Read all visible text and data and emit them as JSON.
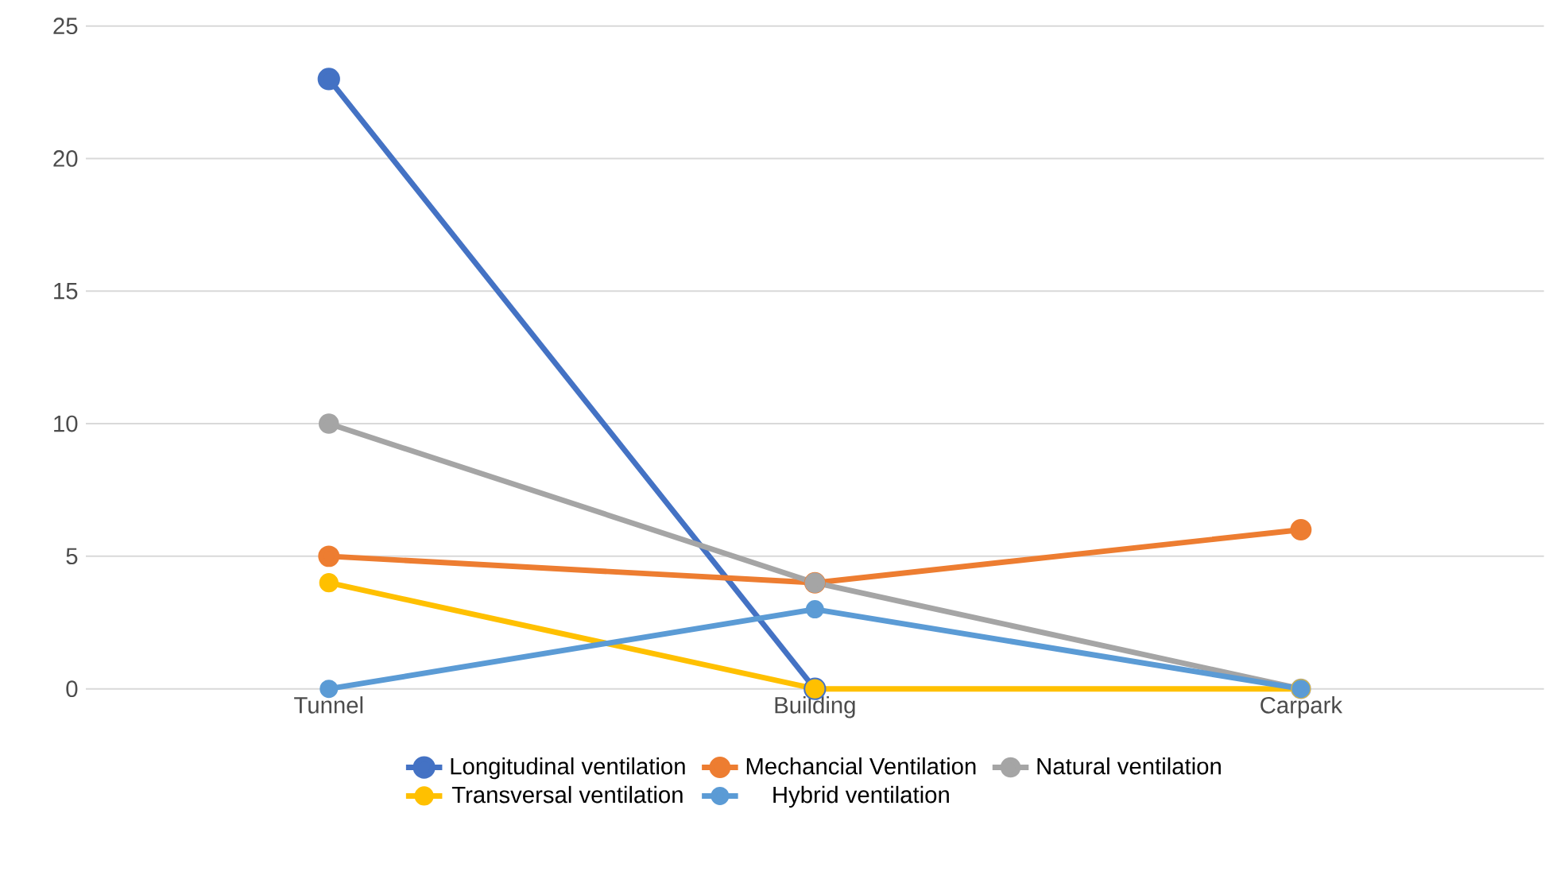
{
  "chart_data": {
    "type": "line",
    "categories": [
      "Tunnel",
      "Building",
      "Carpark"
    ],
    "series": [
      {
        "name": "Longitudinal ventilation",
        "color": "#4472c4",
        "values": [
          23,
          0,
          null
        ]
      },
      {
        "name": "Mechancial Ventilation",
        "color": "#ed7d31",
        "values": [
          5,
          4,
          6
        ]
      },
      {
        "name": "Natural ventilation",
        "color": "#a5a5a5",
        "values": [
          10,
          4,
          0
        ]
      },
      {
        "name": "Transversal ventilation",
        "color": "#ffc000",
        "values": [
          4,
          0,
          0
        ]
      },
      {
        "name": "Hybrid ventilation",
        "color": "#5b9bd5",
        "values": [
          0,
          3,
          0
        ]
      }
    ],
    "ylim": [
      0,
      25
    ],
    "yticks": [
      0,
      5,
      10,
      15,
      20,
      25
    ],
    "grid": "y",
    "legend": "bottom",
    "marker": "circle",
    "line_style": "solid"
  }
}
